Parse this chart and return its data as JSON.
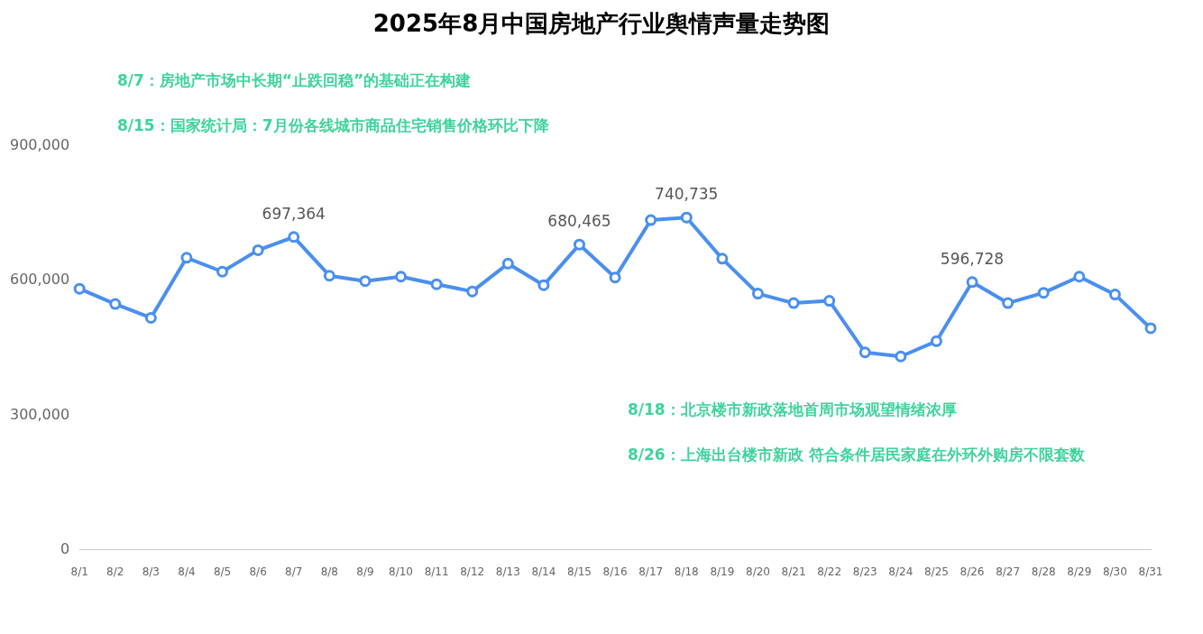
{
  "chart_data": {
    "type": "line",
    "title": "2025年8月中国房地产行业舆情声量走势图",
    "categories": [
      "8/1",
      "8/2",
      "8/3",
      "8/4",
      "8/5",
      "8/6",
      "8/7",
      "8/8",
      "8/9",
      "8/10",
      "8/11",
      "8/12",
      "8/13",
      "8/14",
      "8/15",
      "8/16",
      "8/17",
      "8/18",
      "8/19",
      "8/20",
      "8/21",
      "8/22",
      "8/23",
      "8/24",
      "8/25",
      "8/26",
      "8/27",
      "8/28",
      "8/29",
      "8/30",
      "8/31"
    ],
    "series": [
      {
        "color": "#4a8ff0",
        "values": [
          582000,
          548000,
          517000,
          651000,
          620000,
          668000,
          697364,
          611000,
          599000,
          609000,
          592000,
          576000,
          638000,
          590000,
          680465,
          607000,
          735000,
          740735,
          649000,
          571000,
          550000,
          555000,
          440000,
          431000,
          465000,
          596728,
          550000,
          573000,
          609000,
          569000,
          494000
        ],
        "value_labels": [
          null,
          null,
          null,
          null,
          null,
          null,
          "697,364",
          null,
          null,
          null,
          null,
          null,
          null,
          null,
          "680,465",
          null,
          null,
          "740,735",
          null,
          null,
          null,
          null,
          null,
          null,
          null,
          "596,728",
          null,
          null,
          null,
          null,
          null
        ]
      }
    ],
    "ylim": [
      0,
      900000
    ],
    "yticks": [
      {
        "value": 0,
        "label": "0"
      },
      {
        "value": 300000,
        "label": "300,000"
      },
      {
        "value": 600000,
        "label": "600,000"
      },
      {
        "value": 900000,
        "label": "900,000"
      }
    ],
    "grid": false,
    "legend": false,
    "marker": "circle",
    "line_style": "solid",
    "annotations": [
      "8/7：房地产市场中长期“止跌回稳”的基础正在构建",
      "8/15：国家统计局：7月份各线城市商品住宅销售价格环比下降",
      "8/18：北京楼市新政落地首周市场观望情绪浓厚",
      "8/26：上海出台楼市新政 符合条件居民家庭在外环外购房不限套数"
    ]
  }
}
